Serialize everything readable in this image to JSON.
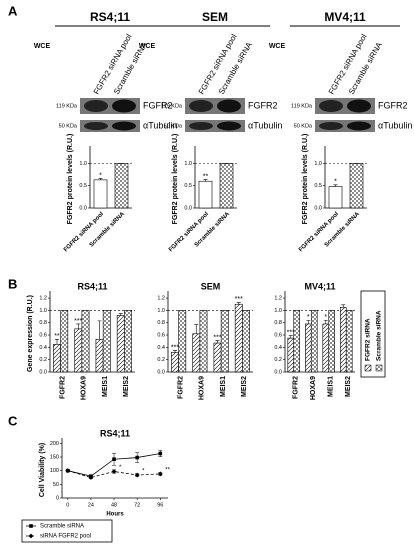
{
  "panel_labels": [
    "A",
    "B",
    "C"
  ],
  "blots": [
    {
      "title": "RS4;11",
      "extract": "WCE",
      "lanes": [
        "FGFR2 siRNA pool",
        "Scramble siRNA"
      ],
      "bands": [
        {
          "mw": "119 KDa",
          "protein": "FGFR2"
        },
        {
          "mw": "50 KDa",
          "protein": "αTubulin"
        }
      ]
    },
    {
      "title": "SEM",
      "extract": "WCE",
      "lanes": [
        "FGFR2 siRNA pool",
        "Scramble siRNA"
      ],
      "bands": [
        {
          "mw": "119 KDa",
          "protein": "FGFR2"
        },
        {
          "mw": "50 KDa",
          "protein": "αTubulin"
        }
      ]
    },
    {
      "title": "MV4;11",
      "extract": "WCE",
      "lanes": [
        "FGFR2 siRNA pool",
        "Scramble siRNA"
      ],
      "bands": [
        {
          "mw": "119 KDa",
          "protein": "FGFR2"
        },
        {
          "mw": "50 KDa",
          "protein": "αTubulin"
        }
      ]
    }
  ],
  "chart_data": [
    {
      "type": "bar",
      "ylabel": "FGFR2 protein levels (R.U.)",
      "categories": [
        "FGFR2 siRNA pool",
        "Scramble siRNA"
      ],
      "values": [
        0.63,
        1.0
      ],
      "errors": [
        0.03,
        0.0
      ],
      "stars": [
        "*",
        null
      ],
      "colors": [
        "#ffffff",
        "#8c8c8c"
      ],
      "hatch": [
        "none",
        "check"
      ],
      "ylim": [
        0,
        1.3
      ],
      "yticks": [
        {
          "value": 0,
          "label": "0.0"
        },
        0.5,
        {
          "value": 1,
          "label": "1.0"
        }
      ],
      "reference_line": 1
    },
    {
      "type": "bar",
      "ylabel": "FGFR2 protein levels (R.U.)",
      "categories": [
        "FGFR2 siRNA pool",
        "Scramble siRNA"
      ],
      "values": [
        0.6,
        1.0
      ],
      "errors": [
        0.04,
        0.0
      ],
      "stars": [
        "**",
        null
      ],
      "colors": [
        "#ffffff",
        "#8c8c8c"
      ],
      "hatch": [
        "none",
        "check"
      ],
      "ylim": [
        0,
        1.3
      ],
      "yticks": [
        {
          "value": 0,
          "label": "0.0"
        },
        0.5,
        {
          "value": 1,
          "label": "1.0"
        }
      ],
      "reference_line": 1
    },
    {
      "type": "bar",
      "ylabel": "FGFR2 protein levels (R.U.)",
      "categories": [
        "FGFR2 siRNA pool",
        "Scramble siRNA"
      ],
      "values": [
        0.48,
        1.0
      ],
      "errors": [
        0.04,
        0.0
      ],
      "stars": [
        "*",
        null
      ],
      "colors": [
        "#ffffff",
        "#8c8c8c"
      ],
      "hatch": [
        "none",
        "check"
      ],
      "ylim": [
        0,
        1.3
      ],
      "yticks": [
        {
          "value": 0,
          "label": "0.0"
        },
        0.5,
        {
          "value": 1,
          "label": "1.0"
        }
      ],
      "reference_line": 1
    },
    {
      "type": "grouped_bar",
      "title": "RS4;11",
      "ylabel": "Gene expression (R.U.)",
      "categories": [
        "FGFR2",
        "HOXA9",
        "MEIS1",
        "MEIS2"
      ],
      "series": [
        {
          "color": "#ffffff",
          "hatch": "diagonal",
          "values": [
            0.45,
            0.7,
            0.53,
            0.92
          ],
          "errors": [
            0.08,
            0.08,
            0.3,
            0.03
          ],
          "stars": [
            "**",
            "***",
            null,
            null
          ]
        },
        {
          "color": "#8c8c8c",
          "hatch": "check",
          "values": [
            1.0,
            1.0,
            1.0,
            1.0
          ]
        }
      ],
      "ylim": [
        0,
        1.25
      ],
      "yticks": [
        {
          "value": 0,
          "label": "0.0"
        },
        0.2,
        0.4,
        0.6,
        0.8,
        {
          "value": 1,
          "label": "1.0"
        },
        1.2
      ],
      "reference_line": 1
    },
    {
      "type": "grouped_bar",
      "title": "SEM",
      "categories": [
        "FGFR2",
        "HOXA9",
        "MEIS1",
        "MEIS2"
      ],
      "series": [
        {
          "color": "#ffffff",
          "hatch": "diagonal",
          "values": [
            0.32,
            0.62,
            0.47,
            1.1
          ],
          "errors": [
            0.03,
            0.15,
            0.04,
            0.03
          ],
          "stars": [
            "***",
            null,
            "***",
            "***"
          ]
        },
        {
          "color": "#8c8c8c",
          "hatch": "check",
          "values": [
            1.0,
            1.0,
            1.0,
            1.0
          ]
        }
      ],
      "ylim": [
        0,
        1.25
      ],
      "yticks": [
        {
          "value": 0,
          "label": "0.0"
        },
        0.2,
        0.4,
        0.6,
        0.8,
        {
          "value": 1,
          "label": "1.0"
        },
        1.2
      ],
      "reference_line": 1
    },
    {
      "type": "grouped_bar",
      "title": "MV4;11",
      "categories": [
        "FGFR2",
        "HOXA9",
        "MEIS1",
        "MEIS2"
      ],
      "series": [
        {
          "name": "FGFR2 siRNA",
          "color": "#ffffff",
          "hatch": "diagonal",
          "values": [
            0.55,
            0.78,
            0.78,
            1.05
          ],
          "errors": [
            0.04,
            0.06,
            0.06,
            0.04
          ],
          "stars": [
            "***",
            "*",
            "*",
            null
          ]
        },
        {
          "name": "Scramble siRNA",
          "color": "#8c8c8c",
          "hatch": "check",
          "values": [
            1.0,
            1.0,
            1.0,
            1.0
          ]
        }
      ],
      "ylim": [
        0,
        1.25
      ],
      "yticks": [
        {
          "value": 0,
          "label": "0.0"
        },
        0.2,
        0.4,
        0.6,
        0.8,
        {
          "value": 1,
          "label": "1.0"
        },
        1.2
      ],
      "reference_line": 1,
      "legend": "right"
    },
    {
      "type": "line",
      "title": "RS4;11",
      "xlabel": "Hours",
      "ylabel": "Cell Viability (%)",
      "x": [
        0,
        24,
        48,
        72,
        96
      ],
      "series": [
        {
          "name": "Scramble siRNA",
          "color": "#000000",
          "marker": "square",
          "line_style": "solid",
          "values": [
            100,
            80,
            142,
            148,
            163
          ],
          "errors": [
            3,
            5,
            22,
            18,
            12
          ]
        },
        {
          "name": "siRNA FGFR2 pool",
          "color": "#000000",
          "marker": "diamond",
          "line_style": "dashed",
          "values": [
            100,
            75,
            97,
            84,
            88
          ],
          "errors": [
            2,
            4,
            6,
            5,
            5
          ],
          "stars": [
            null,
            null,
            "*",
            "*",
            "**"
          ]
        }
      ],
      "xlim": [
        -6,
        104
      ],
      "xticks": [
        0,
        24,
        48,
        72,
        96
      ],
      "ylim": [
        0,
        205
      ],
      "yticks": [
        0,
        50,
        100,
        150,
        200
      ],
      "legend": "bottom-left"
    }
  ]
}
